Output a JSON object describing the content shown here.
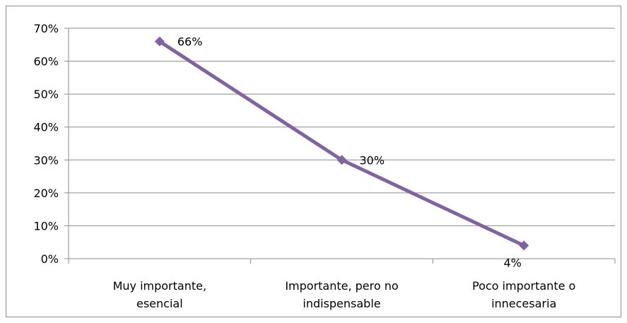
{
  "chart_data": {
    "type": "line",
    "title": "",
    "xlabel": "",
    "ylabel": "",
    "categories": [
      [
        "Muy importante,",
        "esencial"
      ],
      [
        "Importante, pero no",
        "indispensable"
      ],
      [
        "Poco importante o",
        "innecesaria"
      ]
    ],
    "series": [
      {
        "values": [
          0.66,
          0.3,
          0.04
        ],
        "data_labels": [
          "66%",
          "30%",
          "4%"
        ],
        "color": "#8064a2",
        "marker": "diamond"
      }
    ],
    "ylim": [
      0,
      0.7
    ],
    "y_ticks": [
      "0%",
      "10%",
      "20%",
      "30%",
      "40%",
      "50%",
      "60%",
      "70%"
    ],
    "grid": true,
    "legend": "none"
  }
}
